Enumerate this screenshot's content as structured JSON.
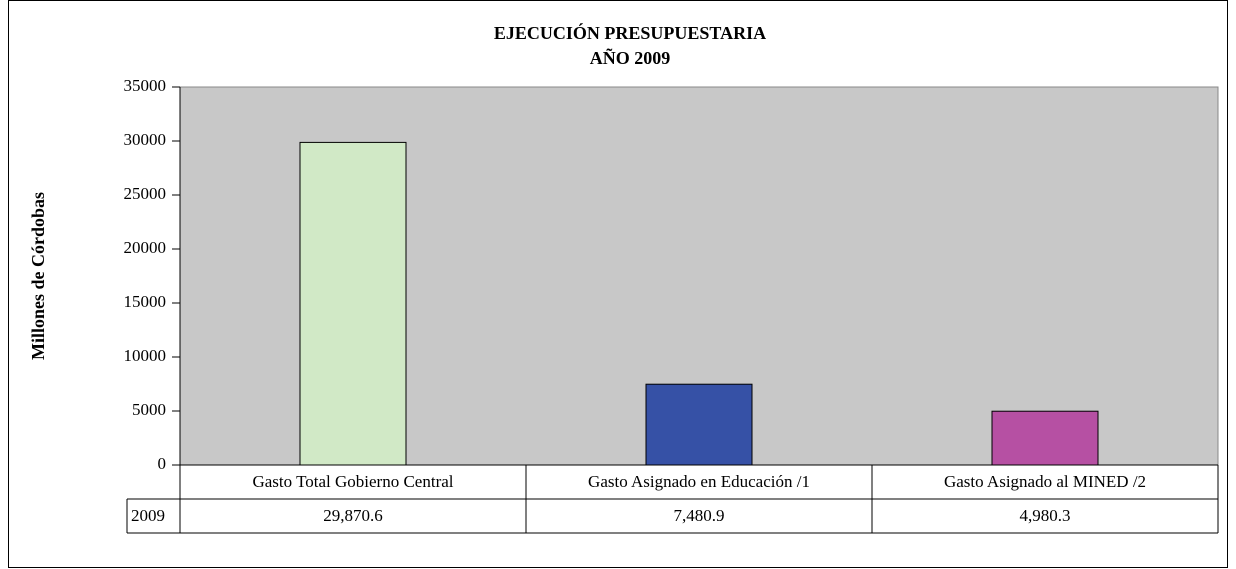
{
  "chart_data": {
    "type": "bar",
    "title": [
      "EJECUCIÓN PRESUPUESTARIA",
      "AÑO 2009"
    ],
    "y_label": "Millones de Córdobas",
    "categories": [
      "Gasto Total Gobierno Central",
      "Gasto Asignado en Educación /1",
      "Gasto Asignado al MINED /2"
    ],
    "series": [
      {
        "name": "2009",
        "colors": [
          "#d1e9c6",
          "#3651a6",
          "#b650a3"
        ],
        "values": [
          29870.6,
          7480.9,
          4980.3
        ],
        "value_labels": [
          "29,870.6",
          "7,480.9",
          "4,980.3"
        ]
      }
    ],
    "ylim": [
      0,
      35000
    ],
    "yticks": [
      0,
      5000,
      10000,
      15000,
      20000,
      25000,
      30000,
      35000
    ],
    "plot_background": "#c8c8c8"
  }
}
